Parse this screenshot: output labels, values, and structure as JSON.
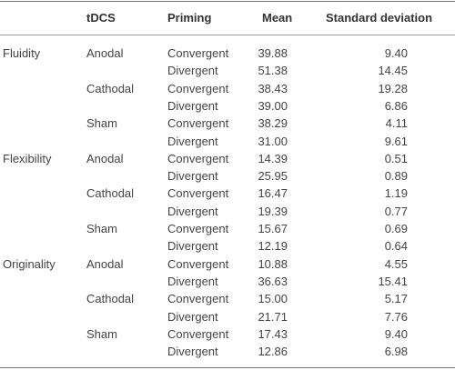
{
  "headers": [
    "",
    "tDCS",
    "Priming",
    "Mean",
    "Standard deviation"
  ],
  "measures": [
    {
      "name": "Fluidity",
      "groups": [
        {
          "tdcs": "Anodal",
          "rows": [
            {
              "priming": "Convergent",
              "mean": "39.88",
              "sd": "9.40"
            },
            {
              "priming": "Divergent",
              "mean": "51.38",
              "sd": "14.45"
            }
          ]
        },
        {
          "tdcs": "Cathodal",
          "rows": [
            {
              "priming": "Convergent",
              "mean": "38.43",
              "sd": "19.28"
            },
            {
              "priming": "Divergent",
              "mean": "39.00",
              "sd": "6.86"
            }
          ]
        },
        {
          "tdcs": "Sham",
          "rows": [
            {
              "priming": "Convergent",
              "mean": "38.29",
              "sd": "4.11"
            },
            {
              "priming": "Divergent",
              "mean": "31.00",
              "sd": "9.61"
            }
          ]
        }
      ]
    },
    {
      "name": "Flexibility",
      "groups": [
        {
          "tdcs": "Anodal",
          "rows": [
            {
              "priming": "Convergent",
              "mean": "14.39",
              "sd": "0.51"
            },
            {
              "priming": "Divergent",
              "mean": "25.95",
              "sd": "0.89"
            }
          ]
        },
        {
          "tdcs": "Cathodal",
          "rows": [
            {
              "priming": "Convergent",
              "mean": "16.47",
              "sd": "1.19"
            },
            {
              "priming": "Divergent",
              "mean": "19.39",
              "sd": "0.77"
            }
          ]
        },
        {
          "tdcs": "Sham",
          "rows": [
            {
              "priming": "Convergent",
              "mean": "15.67",
              "sd": "0.69"
            },
            {
              "priming": "Divergent",
              "mean": "12.19",
              "sd": "0.64"
            }
          ]
        }
      ]
    },
    {
      "name": "Originality",
      "groups": [
        {
          "tdcs": "Anodal",
          "rows": [
            {
              "priming": "Convergent",
              "mean": "10.88",
              "sd": "4.55"
            },
            {
              "priming": "Divergent",
              "mean": "36.63",
              "sd": "15.41"
            }
          ]
        },
        {
          "tdcs": "Cathodal",
          "rows": [
            {
              "priming": "Convergent",
              "mean": "15.00",
              "sd": "5.17"
            },
            {
              "priming": "Divergent",
              "mean": "21.71",
              "sd": "7.76"
            }
          ]
        },
        {
          "tdcs": "Sham",
          "rows": [
            {
              "priming": "Convergent",
              "mean": "17.43",
              "sd": "9.40"
            },
            {
              "priming": "Divergent",
              "mean": "12.86",
              "sd": "6.98"
            }
          ]
        }
      ]
    }
  ]
}
